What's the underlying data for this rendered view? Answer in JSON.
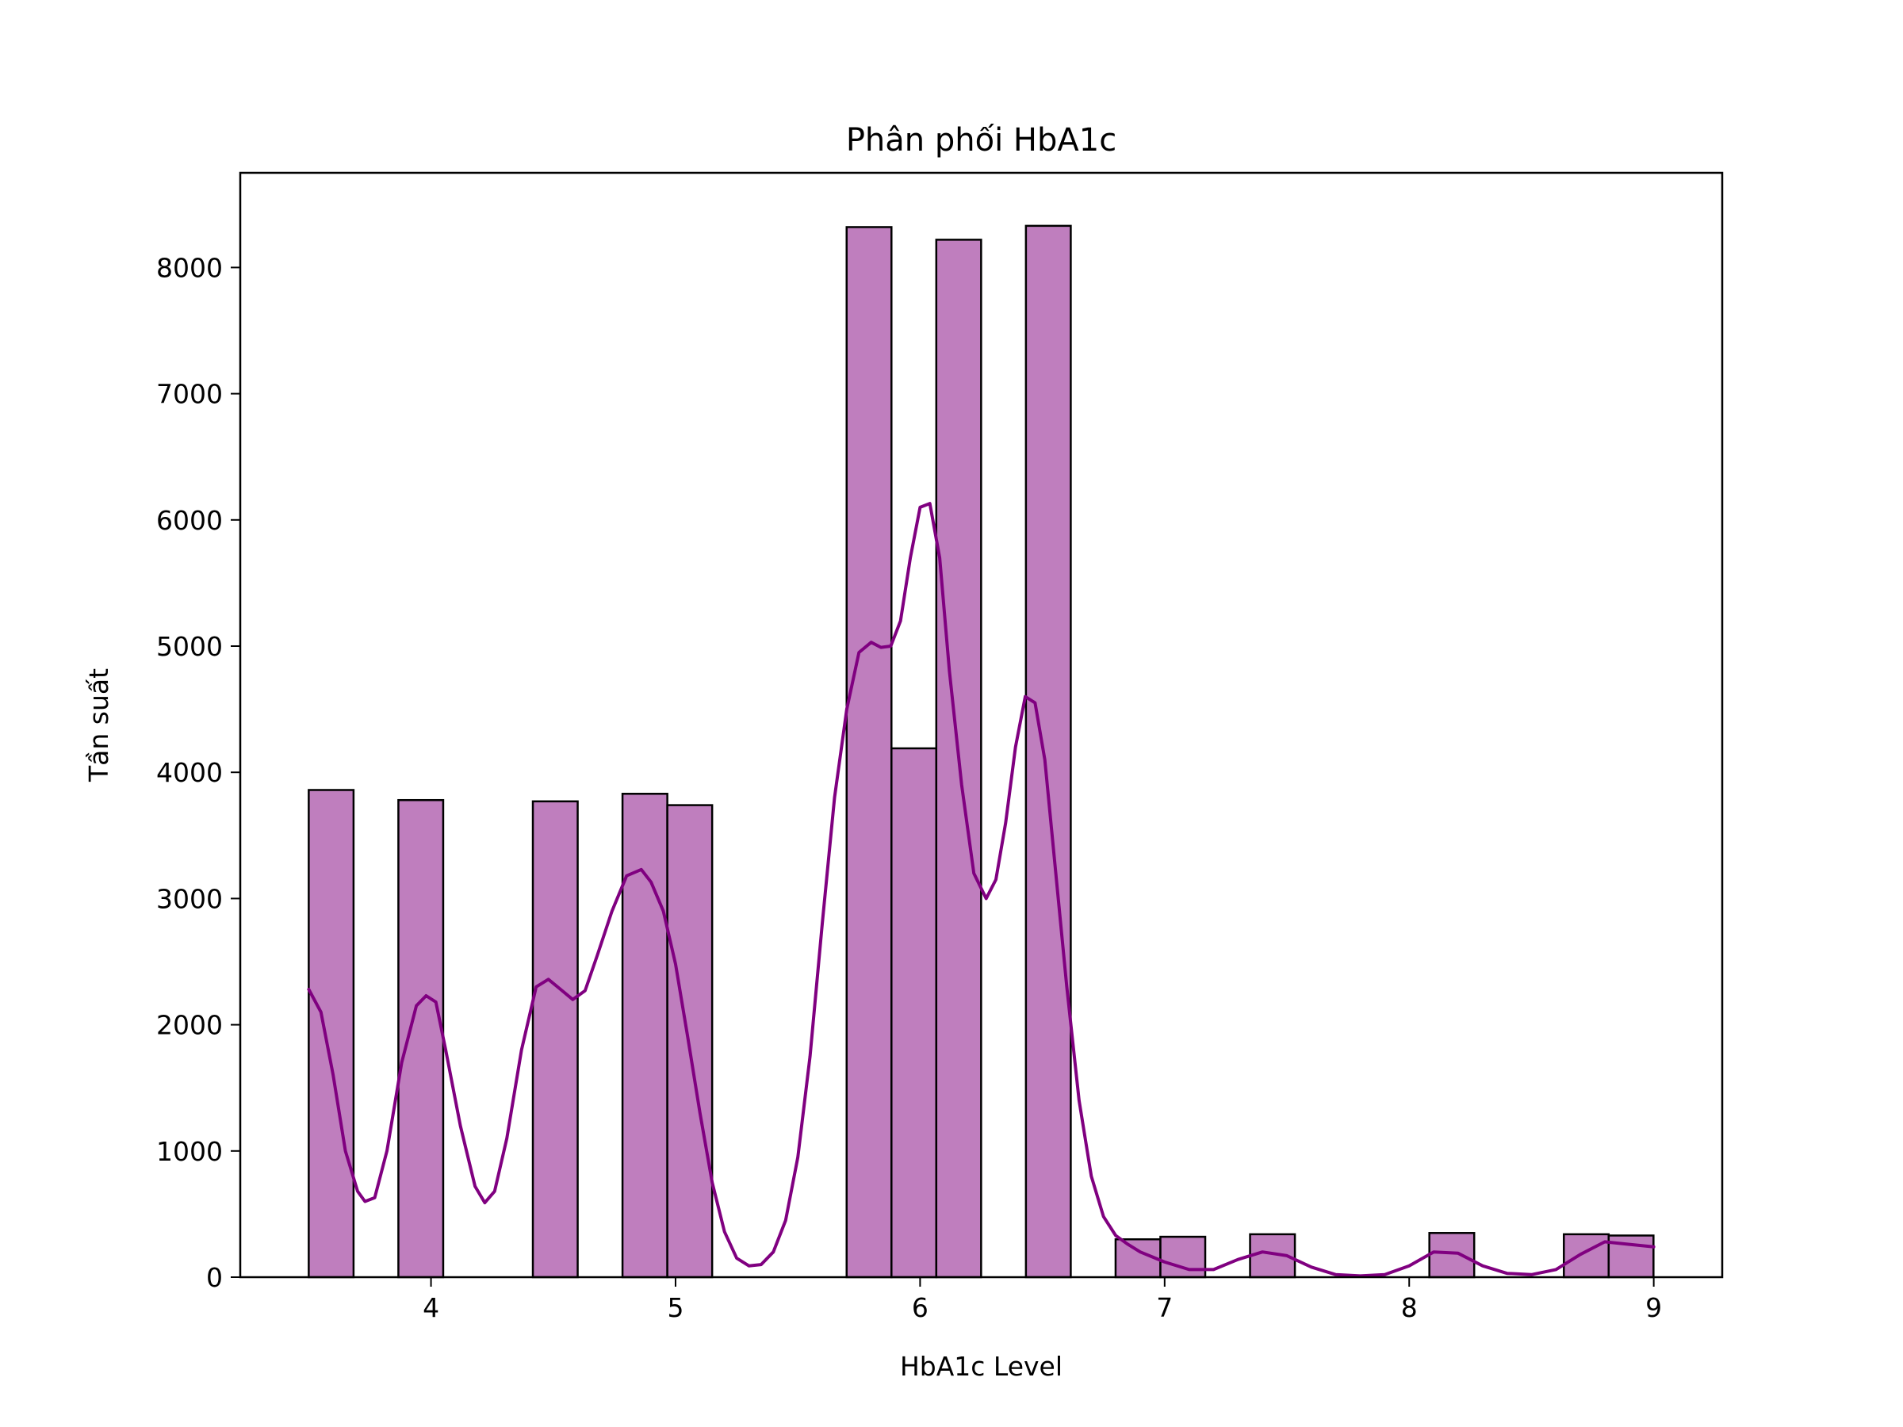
{
  "chart_data": {
    "type": "bar",
    "subtype": "histogram_with_kde",
    "title": "Phân phối HbA1c",
    "xlabel": "HbA1c Level",
    "ylabel": "Tần suất",
    "xlim": [
      3.22,
      9.28
    ],
    "ylim": [
      0,
      8750
    ],
    "xticks": [
      4,
      5,
      6,
      7,
      8,
      9
    ],
    "yticks": [
      0,
      1000,
      2000,
      3000,
      4000,
      5000,
      6000,
      7000,
      8000
    ],
    "bin_start": 3.5,
    "bin_width": 0.1833,
    "bins": [
      {
        "bin_index": 0,
        "count": 3860
      },
      {
        "bin_index": 2,
        "count": 3780
      },
      {
        "bin_index": 5,
        "count": 3770
      },
      {
        "bin_index": 7,
        "count": 3830
      },
      {
        "bin_index": 8,
        "count": 3740
      },
      {
        "bin_index": 12,
        "count": 8320
      },
      {
        "bin_index": 13,
        "count": 4190
      },
      {
        "bin_index": 14,
        "count": 8220
      },
      {
        "bin_index": 16,
        "count": 8330
      },
      {
        "bin_index": 18,
        "count": 300
      },
      {
        "bin_index": 19,
        "count": 320
      },
      {
        "bin_index": 21,
        "count": 340
      },
      {
        "bin_index": 25,
        "count": 350
      },
      {
        "bin_index": 28,
        "count": 340
      },
      {
        "bin_index": 29,
        "count": 330
      }
    ],
    "kde": {
      "x": [
        3.5,
        3.55,
        3.6,
        3.65,
        3.7,
        3.73,
        3.77,
        3.82,
        3.88,
        3.94,
        3.98,
        4.02,
        4.06,
        4.12,
        4.18,
        4.22,
        4.26,
        4.31,
        4.37,
        4.43,
        4.48,
        4.53,
        4.58,
        4.63,
        4.68,
        4.74,
        4.8,
        4.86,
        4.9,
        4.95,
        5.0,
        5.05,
        5.1,
        5.15,
        5.2,
        5.25,
        5.3,
        5.35,
        5.4,
        5.45,
        5.5,
        5.55,
        5.6,
        5.65,
        5.7,
        5.75,
        5.8,
        5.84,
        5.88,
        5.92,
        5.96,
        6.0,
        6.04,
        6.08,
        6.12,
        6.17,
        6.22,
        6.27,
        6.31,
        6.35,
        6.39,
        6.43,
        6.47,
        6.51,
        6.55,
        6.6,
        6.65,
        6.7,
        6.75,
        6.8,
        6.85,
        6.9,
        6.95,
        7.0,
        7.1,
        7.2,
        7.3,
        7.4,
        7.5,
        7.6,
        7.7,
        7.8,
        7.9,
        8.0,
        8.1,
        8.2,
        8.3,
        8.4,
        8.5,
        8.6,
        8.7,
        8.8,
        8.9,
        9.0
      ],
      "y": [
        2280,
        2100,
        1600,
        1000,
        680,
        600,
        630,
        1000,
        1700,
        2150,
        2230,
        2180,
        1800,
        1200,
        720,
        590,
        680,
        1100,
        1800,
        2300,
        2360,
        2280,
        2200,
        2270,
        2550,
        2900,
        3180,
        3230,
        3130,
        2900,
        2480,
        1900,
        1300,
        750,
        360,
        150,
        90,
        100,
        200,
        450,
        950,
        1750,
        2800,
        3800,
        4500,
        4950,
        5030,
        4990,
        5000,
        5200,
        5700,
        6100,
        6130,
        5700,
        4800,
        3900,
        3200,
        3000,
        3150,
        3600,
        4200,
        4600,
        4550,
        4100,
        3300,
        2300,
        1400,
        800,
        480,
        330,
        260,
        200,
        160,
        120,
        60,
        60,
        140,
        200,
        170,
        80,
        20,
        10,
        20,
        90,
        200,
        190,
        90,
        30,
        20,
        60,
        180,
        280,
        260,
        240
      ]
    },
    "colors": {
      "bar_fill": "#bf7ebe",
      "bar_edge": "#000000",
      "kde_line": "#800080"
    }
  }
}
